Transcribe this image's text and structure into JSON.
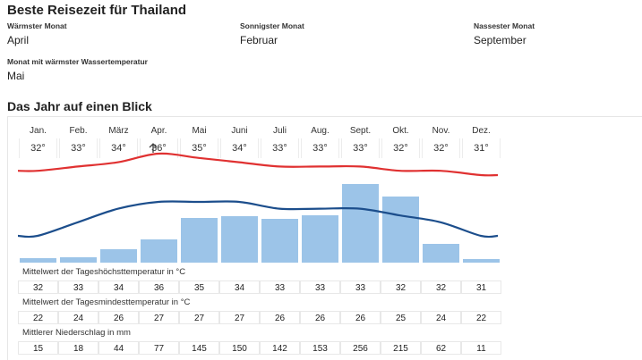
{
  "title": "Beste Reisezeit für Thailand",
  "stats": [
    {
      "label": "Wärmster Monat",
      "value": "April"
    },
    {
      "label": "Sonnigster Monat",
      "value": "Februar"
    },
    {
      "label": "Nassester Monat",
      "value": "September"
    },
    {
      "label": "Monat mit wärmster Wassertemperatur",
      "value": "Mai"
    }
  ],
  "overview_title": "Das Jahr auf einen Blick",
  "months": [
    "Jan.",
    "Feb.",
    "März",
    "Apr.",
    "Mai",
    "Juni",
    "Juli",
    "Aug.",
    "Sept.",
    "Okt.",
    "Nov.",
    "Dez."
  ],
  "top_temps": [
    "32°",
    "33°",
    "34°",
    "36°",
    "35°",
    "34°",
    "33°",
    "33°",
    "33°",
    "32°",
    "32°",
    "31°"
  ],
  "colors": {
    "high_line": "#e03131",
    "low_line": "#1c4e8c",
    "bars": "#9cc4e8"
  },
  "chart_data": {
    "type": "bar",
    "categories": [
      "Jan.",
      "Feb.",
      "März",
      "Apr.",
      "Mai",
      "Juni",
      "Juli",
      "Aug.",
      "Sept.",
      "Okt.",
      "Nov.",
      "Dez."
    ],
    "series": [
      {
        "name": "Mittelwert der Tageshöchsttemperatur in °C",
        "type": "line",
        "values": [
          32,
          33,
          34,
          36,
          35,
          34,
          33,
          33,
          33,
          32,
          32,
          31
        ]
      },
      {
        "name": "Mittelwert der Tagesmindesttemperatur in °C",
        "type": "line",
        "values": [
          22,
          24,
          26,
          27,
          27,
          27,
          26,
          26,
          26,
          25,
          24,
          22
        ]
      },
      {
        "name": "Mittlerer Niederschlag in mm",
        "type": "bar",
        "values": [
          15,
          18,
          44,
          77,
          145,
          150,
          142,
          153,
          256,
          215,
          62,
          11
        ]
      }
    ]
  },
  "rows": [
    {
      "label": "Mittelwert der Tageshöchsttemperatur in °C",
      "values": [
        "32",
        "33",
        "34",
        "36",
        "35",
        "34",
        "33",
        "33",
        "33",
        "32",
        "32",
        "31"
      ]
    },
    {
      "label": "Mittelwert der Tagesmindesttemperatur in °C",
      "values": [
        "22",
        "24",
        "26",
        "27",
        "27",
        "27",
        "26",
        "26",
        "26",
        "25",
        "24",
        "22"
      ]
    },
    {
      "label": "Mittlerer Niederschlag in mm",
      "values": [
        "15",
        "18",
        "44",
        "77",
        "145",
        "150",
        "142",
        "153",
        "256",
        "215",
        "62",
        "11"
      ]
    }
  ]
}
